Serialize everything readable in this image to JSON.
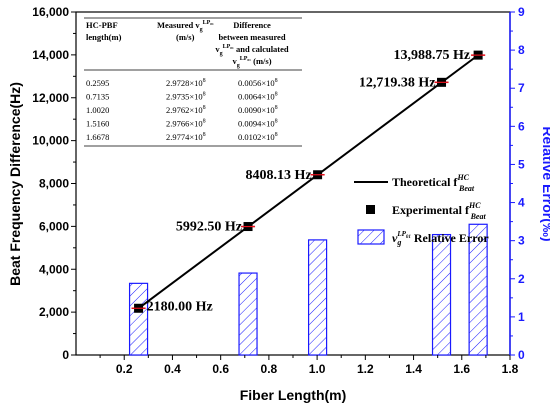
{
  "chart_data": {
    "type": "bar+line+scatter",
    "xlabel": "Fiber Length(m)",
    "ylabel_left": "Beat Frequency Difference(Hz)",
    "ylabel_right": "Relative Error(‰)",
    "xlim": [
      0.0,
      1.8
    ],
    "ylim_left": [
      0,
      16000
    ],
    "ylim_right": [
      0,
      9
    ],
    "x_ticks": [
      "0.2",
      "0.4",
      "0.6",
      "0.8",
      "1.0",
      "1.2",
      "1.4",
      "1.6",
      "1.8"
    ],
    "y_left_ticks": [
      "0",
      "2,000",
      "4,000",
      "6,000",
      "8,000",
      "10,000",
      "12,000",
      "14,000",
      "16,000"
    ],
    "y_right_ticks": [
      "0",
      "1",
      "2",
      "3",
      "4",
      "5",
      "6",
      "7",
      "8",
      "9"
    ],
    "theoretical_line": {
      "name": "Theoretical",
      "x": [
        0.2595,
        1.6678
      ],
      "y": [
        2180.0,
        13988.75
      ]
    },
    "experimental": {
      "name": "Experimental",
      "x": [
        0.2595,
        0.7135,
        1.002,
        1.516,
        1.6678
      ],
      "y": [
        2180.0,
        5992.5,
        8408.13,
        12719.38,
        13988.75
      ]
    },
    "relative_error": {
      "name": "Relative Error",
      "x": [
        0.2595,
        0.7135,
        1.002,
        1.516,
        1.6678
      ],
      "values": [
        1.88,
        2.15,
        3.02,
        3.16,
        3.43
      ]
    },
    "annotations": [
      "2180.00 Hz",
      "5992.50 Hz",
      "8408.13 Hz",
      "12,719.38 Hz",
      "13,988.75 Hz"
    ],
    "legend": {
      "placement": "right",
      "theoretical": "Theoretical f",
      "experimental": "Experimental f",
      "error": "Relative Error",
      "sup": "HC",
      "sub": "Beat",
      "vg": "v",
      "vg_sub": "g",
      "vg_sup": "LP",
      "vg_sup_sub": "01"
    },
    "table": {
      "headers": [
        "HC-PBF length(m)",
        "Measured v",
        "Difference between measured and calculated"
      ],
      "header_units": [
        "",
        "(m/s)",
        "(m/s)"
      ],
      "rows": [
        [
          "0.2595",
          "2.9728×10",
          "0.0056×10"
        ],
        [
          "0.7135",
          "2.9735×10",
          "0.0064×10"
        ],
        [
          "1.0020",
          "2.9762×10",
          "0.0090×10"
        ],
        [
          "1.5160",
          "2.9766×10",
          "0.0094×10"
        ],
        [
          "1.6678",
          "2.9774×10",
          "0.0102×10"
        ]
      ],
      "exp": "8"
    },
    "colors": {
      "axis_left": "#000000",
      "axis_right": "#1a1aff",
      "line": "#000000",
      "marker": "#000000",
      "errbar": "#e8131f",
      "bar": "#1a1aff"
    }
  }
}
